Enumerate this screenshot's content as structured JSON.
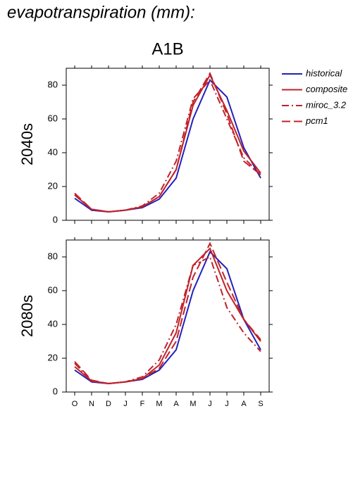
{
  "title": "evapotranspiration (mm):",
  "scenario": "A1B",
  "chart_data": [
    {
      "type": "line",
      "panel_label": "2040s",
      "ylim": [
        0,
        90
      ],
      "yticks": [
        0,
        20,
        40,
        60,
        80
      ],
      "series": [
        {
          "name": "historical",
          "color": "#2222bb",
          "linestyle": "solid",
          "values": [
            13,
            6,
            5,
            6,
            7.5,
            12.5,
            25,
            60,
            83,
            73,
            43,
            25
          ]
        },
        {
          "name": "composite",
          "color": "#c0222a",
          "linestyle": "solid",
          "values": [
            15,
            6.5,
            5,
            6,
            8,
            14,
            30,
            68,
            86,
            65,
            41,
            28
          ]
        },
        {
          "name": "miroc_3.2",
          "color": "#c0222a",
          "linestyle": "dashdot",
          "values": [
            15,
            6.5,
            5,
            6,
            8.5,
            16,
            35,
            72,
            83,
            60,
            37,
            27
          ]
        },
        {
          "name": "pcm1",
          "color": "#c0222a",
          "linestyle": "dashed",
          "values": [
            16,
            6.5,
            5,
            6,
            8,
            14,
            30,
            70,
            87,
            63,
            35,
            27
          ]
        }
      ]
    },
    {
      "type": "line",
      "panel_label": "2080s",
      "categories": [
        "O",
        "N",
        "D",
        "J",
        "F",
        "M",
        "A",
        "M",
        "J",
        "J",
        "A",
        "S"
      ],
      "ylim": [
        0,
        90
      ],
      "yticks": [
        0,
        20,
        40,
        60,
        80
      ],
      "series": [
        {
          "name": "historical",
          "color": "#2222bb",
          "linestyle": "solid",
          "values": [
            13,
            6,
            5,
            6,
            7.5,
            13,
            25,
            60,
            83,
            73,
            43,
            25
          ]
        },
        {
          "name": "composite",
          "color": "#c0222a",
          "linestyle": "solid",
          "values": [
            15,
            6.5,
            5,
            6,
            8,
            16,
            35,
            75,
            85,
            60,
            43,
            30
          ]
        },
        {
          "name": "miroc_3.2",
          "color": "#c0222a",
          "linestyle": "dashdot",
          "values": [
            17,
            6.5,
            5,
            6,
            9,
            19,
            40,
            75,
            80,
            50,
            35,
            24
          ]
        },
        {
          "name": "pcm1",
          "color": "#c0222a",
          "linestyle": "dashed",
          "values": [
            18,
            7,
            5,
            6,
            8,
            14,
            30,
            68,
            88,
            65,
            43,
            31
          ]
        }
      ]
    }
  ]
}
